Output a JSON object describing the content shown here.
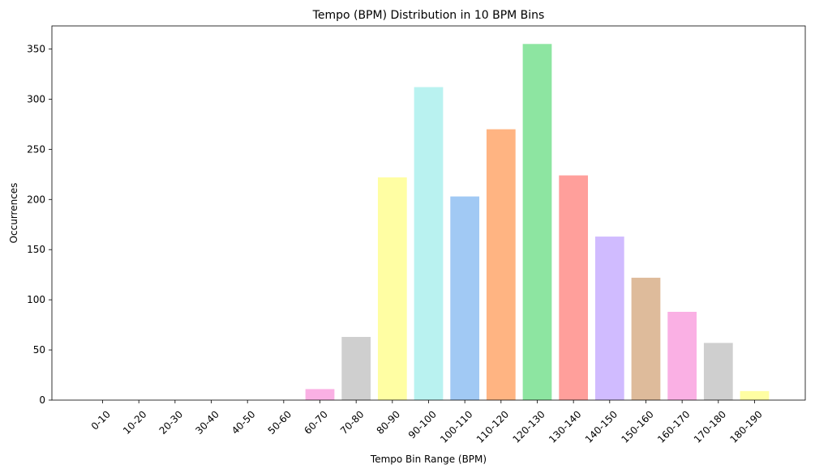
{
  "chart_data": {
    "type": "bar",
    "title": "Tempo (BPM) Distribution in 10 BPM Bins",
    "xlabel": "Tempo Bin Range (BPM)",
    "ylabel": "Occurrences",
    "categories": [
      "0-10",
      "10-20",
      "20-30",
      "30-40",
      "40-50",
      "50-60",
      "60-70",
      "70-80",
      "80-90",
      "90-100",
      "100-110",
      "110-120",
      "120-130",
      "130-140",
      "140-150",
      "150-160",
      "160-170",
      "170-180",
      "180-190"
    ],
    "values": [
      0,
      0,
      0,
      0,
      0,
      0,
      11,
      63,
      222,
      312,
      203,
      270,
      355,
      224,
      163,
      122,
      88,
      57,
      9
    ],
    "colors": [
      "#a1c9f4",
      "#ffb482",
      "#8de5a1",
      "#ff9f9b",
      "#d0bbff",
      "#debb9b",
      "#fab0e4",
      "#cfcfcf",
      "#fffea3",
      "#b9f2f0",
      "#a1c9f4",
      "#ffb482",
      "#8de5a1",
      "#ff9f9b",
      "#d0bbff",
      "#debb9b",
      "#fab0e4",
      "#cfcfcf",
      "#fffea3"
    ],
    "ylim": [
      0,
      373
    ],
    "yticks": [
      0,
      50,
      100,
      150,
      200,
      250,
      300,
      350
    ],
    "grid": false,
    "legend": "none"
  }
}
